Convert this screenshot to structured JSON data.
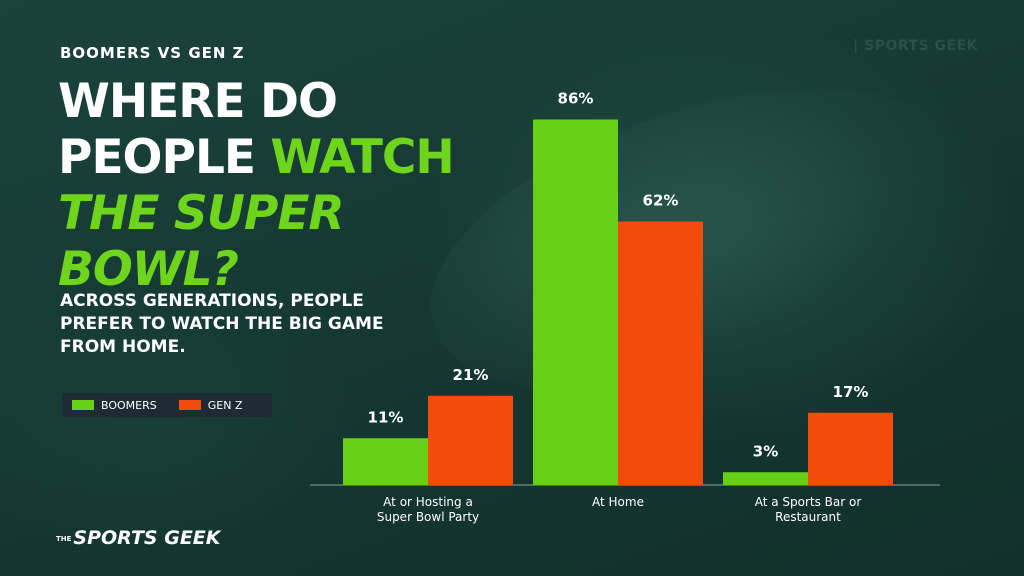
{
  "header": {
    "eyebrow": "BOOMERS VS GEN Z",
    "title_line1": "WHERE DO",
    "title_line2_a": "PEOPLE ",
    "title_line2_b": "WATCH",
    "title_line3": "THE SUPER",
    "title_line4": "BOWL?",
    "subtitle": "ACROSS GENERATIONS, PEOPLE PREFER TO WATCH THE BIG GAME FROM HOME."
  },
  "branding": {
    "top": "| SPORTS GEEK",
    "bottom_small": "THE",
    "bottom": "SPORTS GEEK"
  },
  "colors": {
    "boomers": "#66d017",
    "genz": "#f24b0b",
    "accent_text": "#6fd41c",
    "background": "#163a34"
  },
  "legend": {
    "items": [
      {
        "label": "BOOMERS",
        "color": "#66d017"
      },
      {
        "label": "GEN Z",
        "color": "#f24b0b"
      }
    ]
  },
  "chart_data": {
    "type": "bar",
    "title": "",
    "xlabel": "",
    "ylabel": "",
    "ylim": [
      0,
      100
    ],
    "grid": false,
    "legend_position": "left",
    "categories": [
      [
        "At or Hosting a",
        "Super Bowl Party"
      ],
      [
        "At Home"
      ],
      [
        "At a Sports Bar or",
        "Restaurant"
      ]
    ],
    "series": [
      {
        "name": "BOOMERS",
        "values": [
          11,
          86,
          3
        ],
        "labels": [
          "11%",
          "86%",
          "3%"
        ],
        "color": "#66d017"
      },
      {
        "name": "GEN Z",
        "values": [
          21,
          62,
          17
        ],
        "labels": [
          "21%",
          "62%",
          "17%"
        ],
        "color": "#f24b0b"
      }
    ]
  }
}
